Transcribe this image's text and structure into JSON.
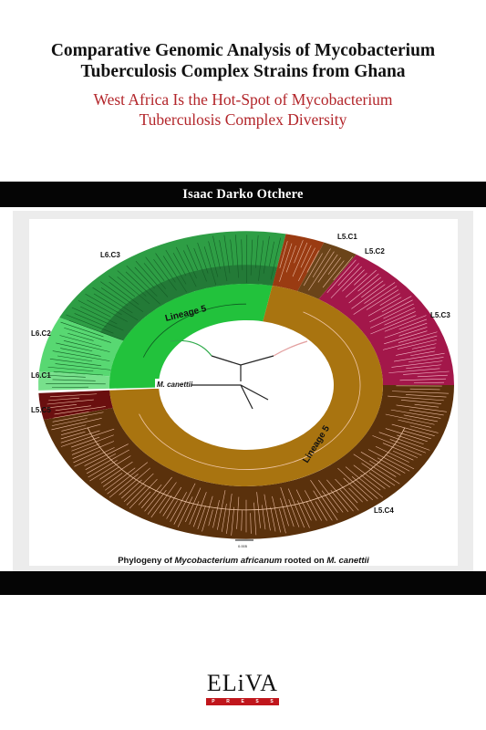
{
  "title": {
    "line1": "Comparative Genomic Analysis of Mycobacterium",
    "line2": "Tuberculosis Complex Strains from Ghana"
  },
  "subtitle": {
    "line1": "West Africa Is the Hot-Spot of Mycobacterium",
    "line2": "Tuberculosis Complex Diversity"
  },
  "author": "Isaac Darko Otchere",
  "figure": {
    "clade_labels": [
      "L5.C1",
      "L5.C2",
      "L5.C3",
      "L5.C4",
      "L5.C5",
      "L6.C1",
      "L6.C2",
      "L6.C3"
    ],
    "lineage_labels": [
      "Lineage 5",
      "Lineage 5"
    ],
    "root_label": "M. canettii",
    "scale_label": "0.005",
    "caption_prefix": "Phylogeny of ",
    "caption_species": "Mycobacterium africanum",
    "caption_middle": " rooted on ",
    "caption_root": "M. canettii",
    "colors": {
      "l6_c3": "#2e9e45",
      "l6_inner": "#22c23c",
      "l6_c2": "#58d872",
      "l6_c1": "#78e08c",
      "l5_c1": "#9a3b12",
      "l5_c2": "#6b4419",
      "l5_c3": "#a3174a",
      "l5_c4": "#5a310c",
      "l5_inner": "#a97410",
      "l5_c5": "#6a0f0f"
    }
  },
  "publisher": {
    "logo": "ELiVA",
    "tagline": [
      "P",
      "R",
      "E",
      "S",
      "S"
    ]
  }
}
